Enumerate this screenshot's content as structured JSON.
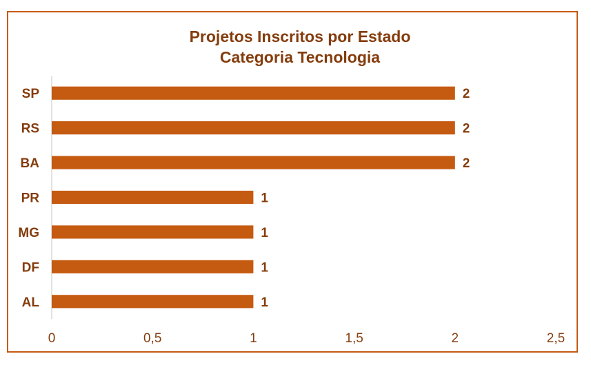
{
  "chart_data": {
    "type": "bar",
    "orientation": "horizontal",
    "title": "Projetos Inscritos por Estado",
    "subtitle": "Categoria Tecnologia",
    "categories": [
      "SP",
      "RS",
      "BA",
      "PR",
      "MG",
      "DF",
      "AL"
    ],
    "values": [
      2,
      2,
      2,
      1,
      1,
      1,
      1
    ],
    "data_labels": [
      "2",
      "2",
      "2",
      "1",
      "1",
      "1",
      "1"
    ],
    "xlim": [
      0,
      2.5
    ],
    "x_ticks": [
      0,
      0.5,
      1,
      1.5,
      2,
      2.5
    ],
    "x_tick_labels": [
      "0",
      "0,5",
      "1",
      "1,5",
      "2",
      "2,5"
    ],
    "xlabel": "",
    "ylabel": "",
    "grid": false,
    "legend": "none",
    "colors": {
      "bar": "#c55a11",
      "text": "#843c0c",
      "border": "#c55a11",
      "axis": "#d9d9d9"
    }
  }
}
